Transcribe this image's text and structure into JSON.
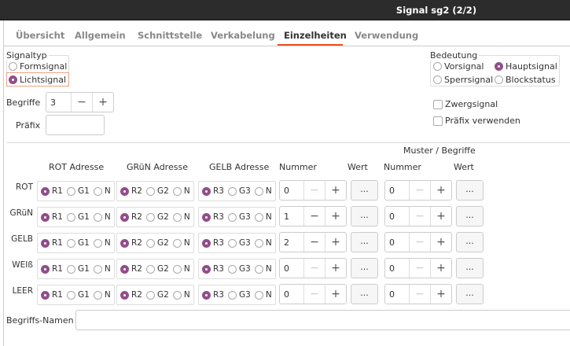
{
  "window": {
    "title": "Signal sg2 (2/2)"
  },
  "tabs": [
    {
      "label": "Übersicht"
    },
    {
      "label": "Allgemein"
    },
    {
      "label": "Schnittstelle"
    },
    {
      "label": "Verkabelung"
    },
    {
      "label": "Einzelheiten",
      "active": true
    },
    {
      "label": "Verwendung"
    }
  ],
  "signaltyp": {
    "label": "Signaltyp",
    "options": [
      "Formsignal",
      "Lichtsignal"
    ],
    "selected": "Lichtsignal"
  },
  "bedeutung": {
    "label": "Bedeutung",
    "options": [
      "Vorsignal",
      "Hauptsignal",
      "Sperrsignal",
      "Blockstatus"
    ],
    "selected": "Hauptsignal"
  },
  "begriffe": {
    "label": "Begriffe",
    "value": "3"
  },
  "praefix": {
    "label": "Präfix",
    "value": ""
  },
  "checkboxes": [
    {
      "label": "Zwergsignal",
      "checked": false
    },
    {
      "label": "Präfix verwenden",
      "checked": false
    }
  ],
  "table": {
    "group_header": "Muster / Begriffe",
    "headers": [
      "ROT Adresse",
      "GRüN Adresse",
      "GELB Adresse",
      "Nummer",
      "Wert",
      "Nummer",
      "Wert"
    ],
    "button_label": "...",
    "rows": [
      {
        "label": "ROT",
        "rot": [
          "R1",
          "G1",
          "N"
        ],
        "gruen": [
          "R2",
          "G2",
          "N"
        ],
        "gelb": [
          "R3",
          "G3",
          "N"
        ],
        "nummer1": "0",
        "nummer2": "0"
      },
      {
        "label": "GRüN",
        "rot": [
          "R1",
          "G1",
          "N"
        ],
        "gruen": [
          "R2",
          "G2",
          "N"
        ],
        "gelb": [
          "R3",
          "G3",
          "N"
        ],
        "nummer1": "1",
        "nummer2": "0"
      },
      {
        "label": "GELB",
        "rot": [
          "R1",
          "G1",
          "N"
        ],
        "gruen": [
          "R2",
          "G2",
          "N"
        ],
        "gelb": [
          "R3",
          "G3",
          "N"
        ],
        "nummer1": "2",
        "nummer2": "0"
      },
      {
        "label": "WEIß",
        "rot": [
          "R1",
          "G1",
          "N"
        ],
        "gruen": [
          "R2",
          "G2",
          "N"
        ],
        "gelb": [
          "R3",
          "G3",
          "N"
        ],
        "nummer1": "0",
        "nummer2": "0"
      },
      {
        "label": "LEER",
        "rot": [
          "R1",
          "G1",
          "N"
        ],
        "gruen": [
          "R2",
          "G2",
          "N"
        ],
        "gelb": [
          "R3",
          "G3",
          "N"
        ],
        "nummer1": "0",
        "nummer2": "0"
      }
    ]
  },
  "begriffs_namen": {
    "label": "Begriffs-Namen",
    "value": ""
  },
  "colors": {
    "accent": "#924d8b",
    "tab_underline": "#e95420",
    "titlebar": "#2c2c2c"
  }
}
